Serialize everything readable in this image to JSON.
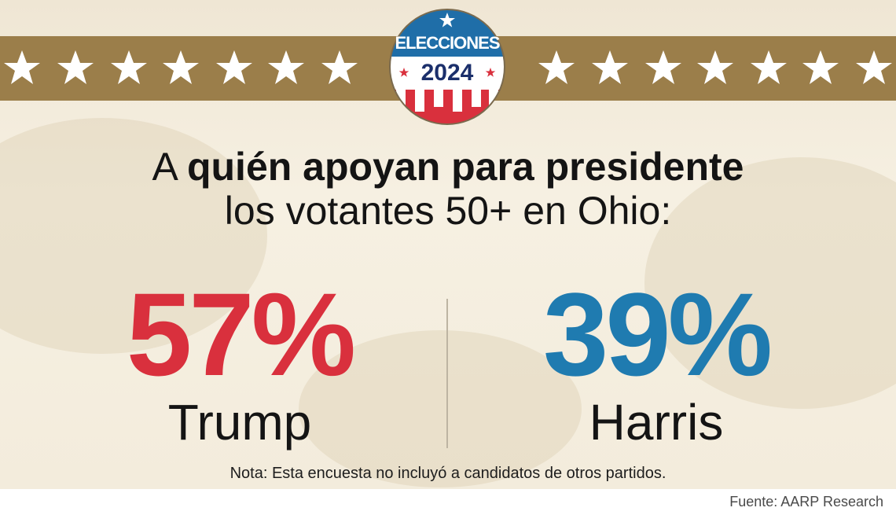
{
  "badge": {
    "title": "ELECCIONES",
    "year": "2024"
  },
  "headline": {
    "prefix": "A ",
    "bold": "quién apoyan para presidente",
    "line2": "los votantes 50+ en Ohio:"
  },
  "results": [
    {
      "percent": "57%",
      "candidate": "Trump",
      "color": "#d9303d"
    },
    {
      "percent": "39%",
      "candidate": "Harris",
      "color": "#1f7bb0"
    }
  ],
  "note": "Nota: Esta encuesta no incluyó a candidatos de otros partidos.",
  "source": "Fuente: AARP Research",
  "colors": {
    "gold_band": "#9b7e4a",
    "badge_blue": "#1f6ea8",
    "badge_red": "#d9303d",
    "badge_navy": "#1b2f6b"
  }
}
